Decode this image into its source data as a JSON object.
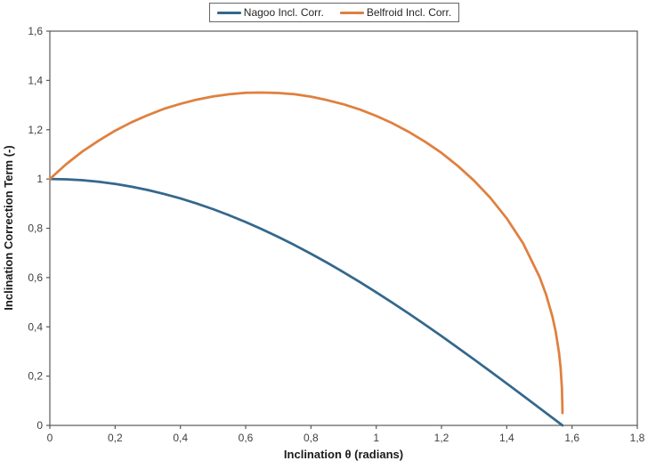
{
  "chart_data": {
    "type": "line",
    "title": "",
    "grid": false,
    "legend_position": "top",
    "x_axis": {
      "label": "Inclination θ (radians)",
      "min": 0,
      "max": 1.8,
      "tick_values": [
        0,
        0.2,
        0.4,
        0.6,
        0.8,
        1,
        1.2,
        1.4,
        1.6,
        1.8
      ],
      "tick_labels": [
        "0",
        "0,2",
        "0,4",
        "0,6",
        "0,8",
        "1",
        "1,2",
        "1,4",
        "1,6",
        "1,8"
      ]
    },
    "y_axis": {
      "label": "Inclination Correction Term (-)",
      "min": 0,
      "max": 1.6,
      "tick_values": [
        0,
        0.2,
        0.4,
        0.6,
        0.8,
        1,
        1.2,
        1.4,
        1.6
      ],
      "tick_labels": [
        "0",
        "0,2",
        "0,4",
        "0,6",
        "0,8",
        "1",
        "1,2",
        "1,4",
        "1,6"
      ]
    },
    "axis_color": "#595959",
    "series": [
      {
        "name": "Nagoo Incl. Corr.",
        "color": "#34688C",
        "points": [
          [
            0,
            1
          ],
          [
            0.05,
            0.9988
          ],
          [
            0.1,
            0.995
          ],
          [
            0.15,
            0.9888
          ],
          [
            0.2,
            0.9801
          ],
          [
            0.25,
            0.9689
          ],
          [
            0.3,
            0.9553
          ],
          [
            0.35,
            0.9394
          ],
          [
            0.4,
            0.9211
          ],
          [
            0.45,
            0.9004
          ],
          [
            0.5,
            0.8776
          ],
          [
            0.55,
            0.8525
          ],
          [
            0.6,
            0.8253
          ],
          [
            0.65,
            0.7961
          ],
          [
            0.7,
            0.7648
          ],
          [
            0.75,
            0.7317
          ],
          [
            0.8,
            0.6967
          ],
          [
            0.85,
            0.66
          ],
          [
            0.9,
            0.6216
          ],
          [
            0.95,
            0.5817
          ],
          [
            1,
            0.5403
          ],
          [
            1.05,
            0.4976
          ],
          [
            1.1,
            0.4536
          ],
          [
            1.15,
            0.4085
          ],
          [
            1.2,
            0.3624
          ],
          [
            1.25,
            0.3153
          ],
          [
            1.3,
            0.2675
          ],
          [
            1.35,
            0.219
          ],
          [
            1.4,
            0.17
          ],
          [
            1.45,
            0.1205
          ],
          [
            1.5,
            0.0707
          ],
          [
            1.55,
            0.0208
          ],
          [
            1.5708,
            0
          ]
        ]
      },
      {
        "name": "Belfroid Incl. Corr.",
        "color": "#DF803F",
        "points": [
          [
            0,
            1.0
          ],
          [
            0.05,
            1.06
          ],
          [
            0.1,
            1.112
          ],
          [
            0.15,
            1.156
          ],
          [
            0.2,
            1.196
          ],
          [
            0.25,
            1.23
          ],
          [
            0.3,
            1.259
          ],
          [
            0.35,
            1.285
          ],
          [
            0.4,
            1.305
          ],
          [
            0.45,
            1.322
          ],
          [
            0.5,
            1.335
          ],
          [
            0.55,
            1.344
          ],
          [
            0.6,
            1.35
          ],
          [
            0.65,
            1.351
          ],
          [
            0.7,
            1.349
          ],
          [
            0.75,
            1.344
          ],
          [
            0.8,
            1.334
          ],
          [
            0.85,
            1.32
          ],
          [
            0.9,
            1.303
          ],
          [
            0.95,
            1.282
          ],
          [
            1,
            1.256
          ],
          [
            1.05,
            1.226
          ],
          [
            1.1,
            1.191
          ],
          [
            1.15,
            1.151
          ],
          [
            1.2,
            1.106
          ],
          [
            1.25,
            1.053
          ],
          [
            1.3,
            0.993
          ],
          [
            1.35,
            0.923
          ],
          [
            1.4,
            0.84
          ],
          [
            1.45,
            0.739
          ],
          [
            1.5,
            0.604
          ],
          [
            1.52,
            0.533
          ],
          [
            1.54,
            0.441
          ],
          [
            1.55,
            0.38
          ],
          [
            1.56,
            0.296
          ],
          [
            1.565,
            0.234
          ],
          [
            1.569,
            0.15
          ],
          [
            1.5705,
            0.076
          ],
          [
            1.5707,
            0.05
          ]
        ]
      }
    ]
  }
}
